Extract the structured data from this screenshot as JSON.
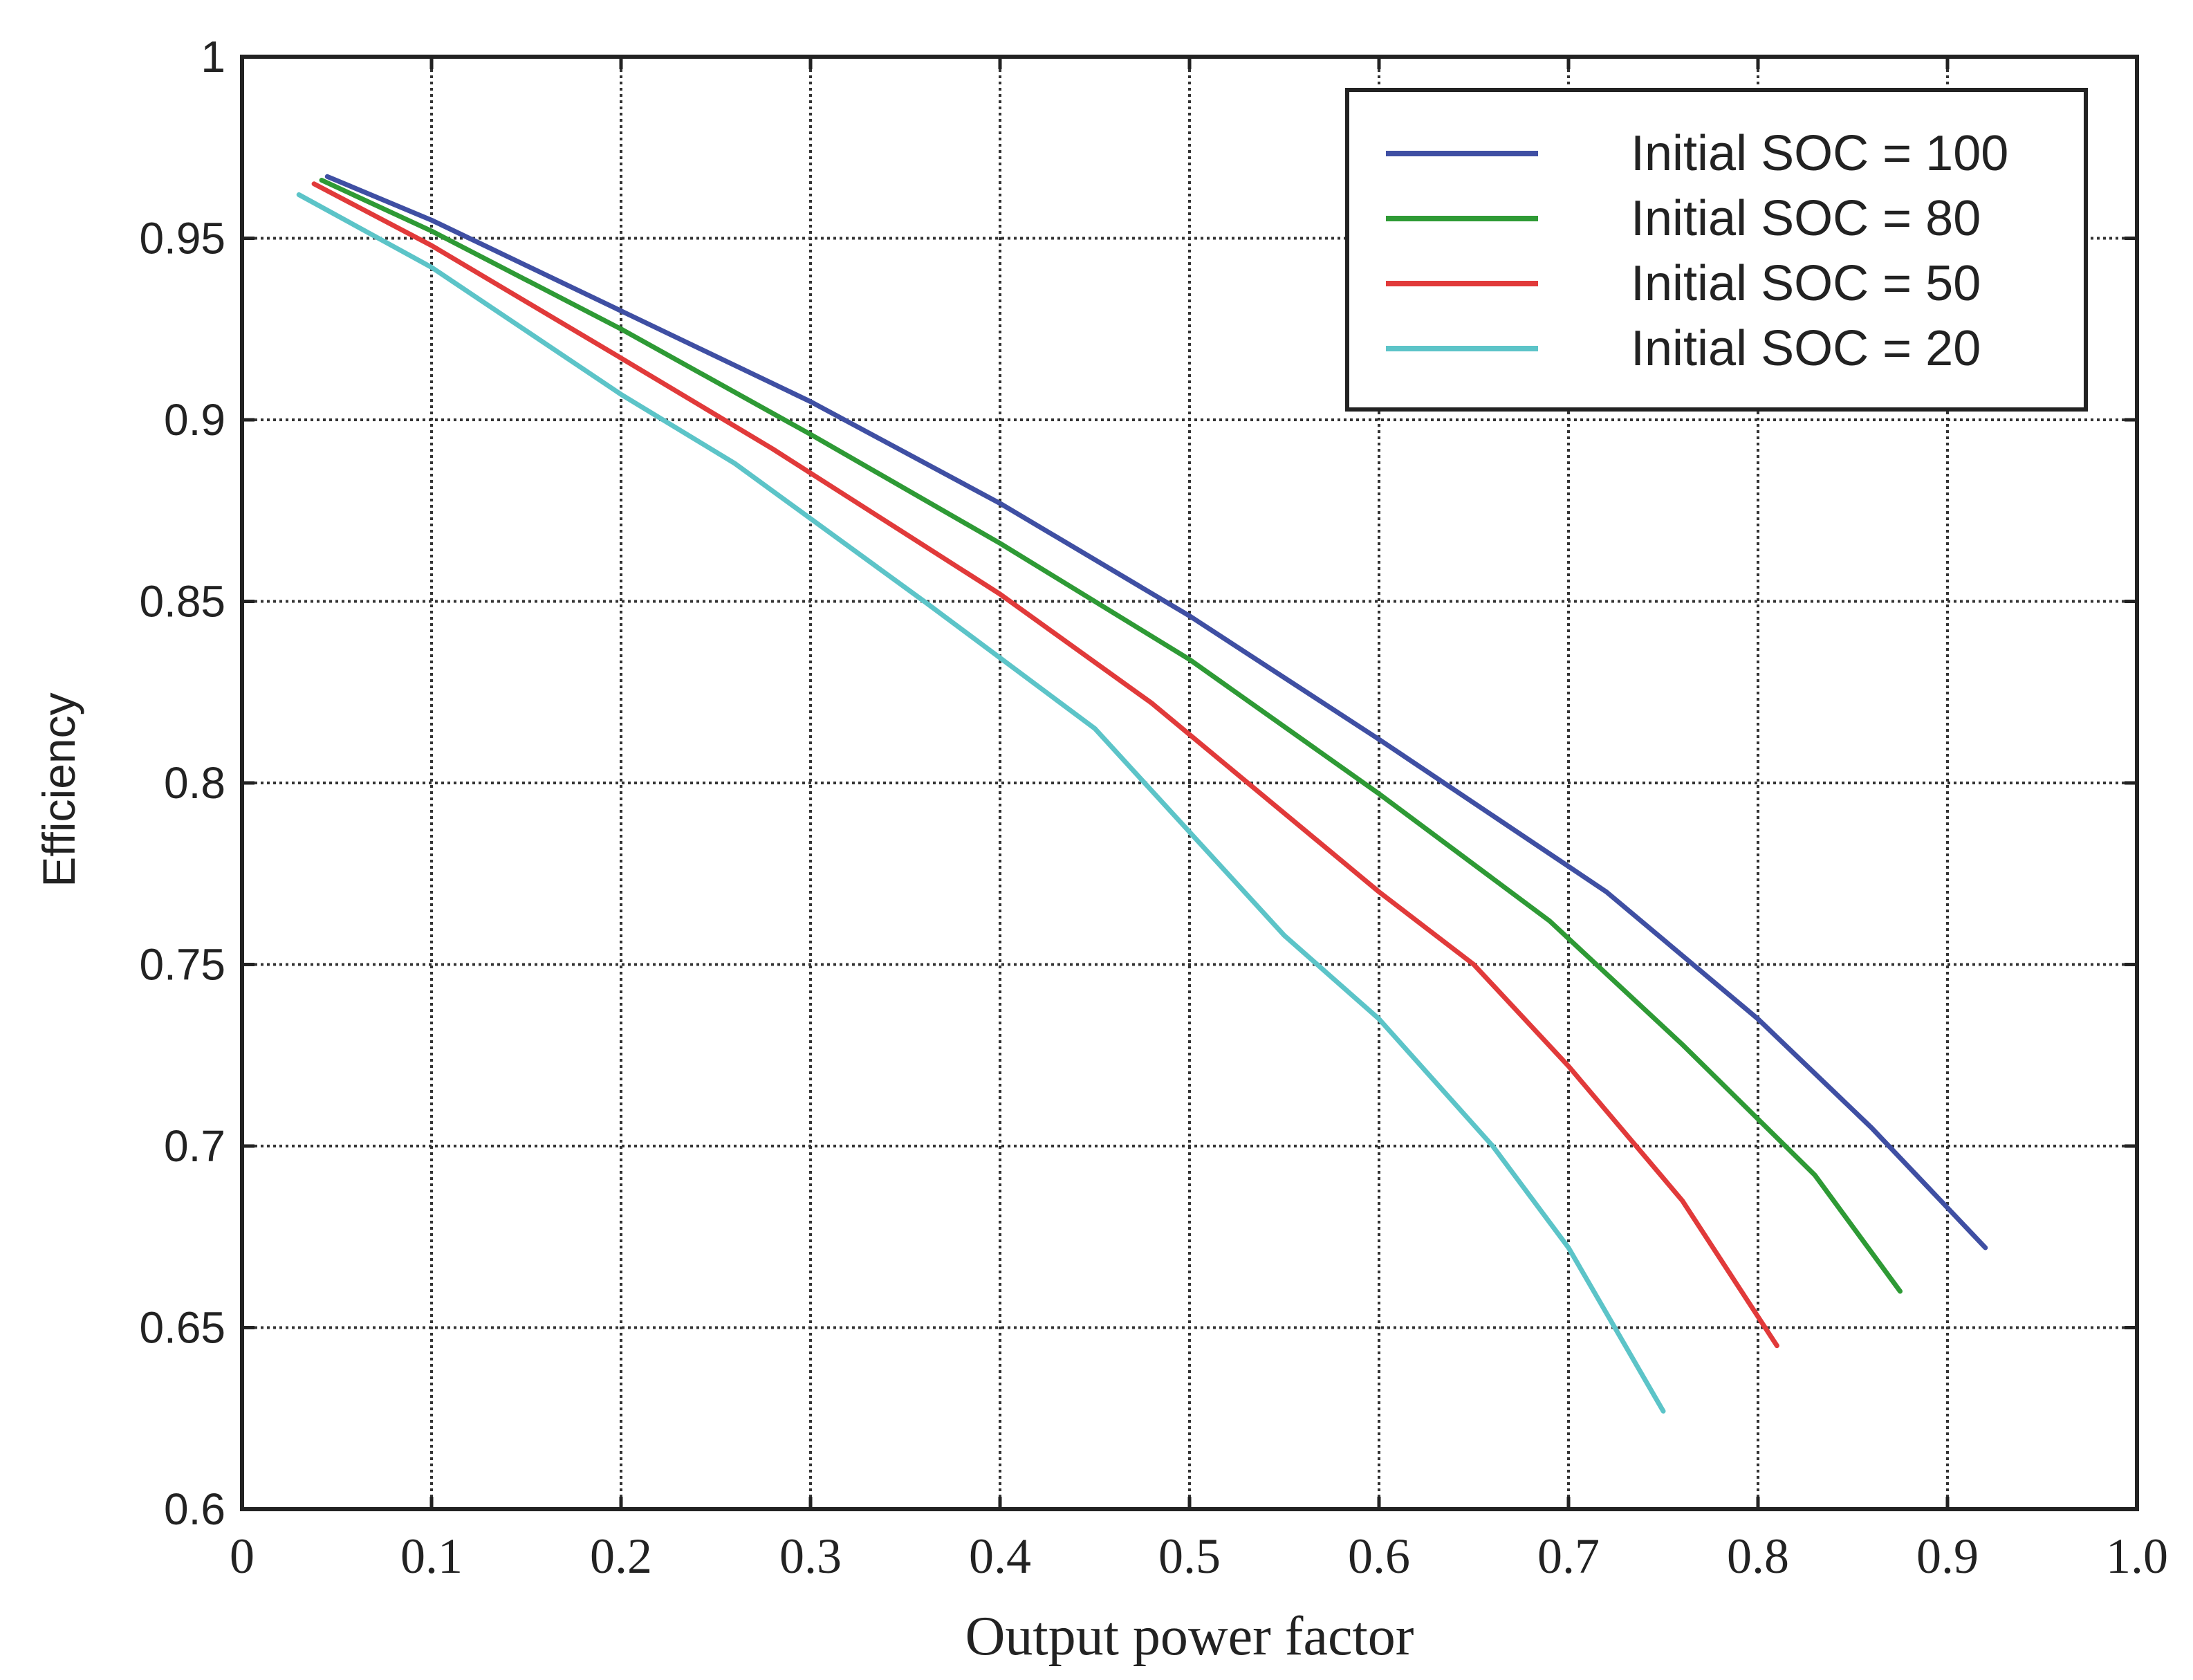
{
  "chart_data": {
    "type": "line",
    "title": "",
    "xlabel": "Output power factor",
    "ylabel": "Efficiency",
    "xlim": [
      0,
      1.0
    ],
    "ylim": [
      0.6,
      1
    ],
    "grid": true,
    "legend_position": "top-right",
    "x_tick_labels": [
      "0",
      "0.1",
      "0.2",
      "0.3",
      "0.4",
      "0.5",
      "0.6",
      "0.7",
      "0.8",
      "0.9",
      "1.0"
    ],
    "y_tick_labels": [
      "0.6",
      "0.65",
      "0.7",
      "0.75",
      "0.8",
      "0.85",
      "0.9",
      "0.95",
      "1"
    ],
    "series": [
      {
        "name": "Initial SOC = 100",
        "color": "#3f4fa3",
        "x": [
          0.045,
          0.1,
          0.2,
          0.3,
          0.4,
          0.5,
          0.6,
          0.7,
          0.72,
          0.8,
          0.86,
          0.92
        ],
        "y": [
          0.967,
          0.955,
          0.93,
          0.905,
          0.877,
          0.846,
          0.812,
          0.777,
          0.77,
          0.735,
          0.705,
          0.672
        ]
      },
      {
        "name": "Initial SOC = 80",
        "color": "#2e9a35",
        "x": [
          0.042,
          0.1,
          0.2,
          0.3,
          0.4,
          0.5,
          0.6,
          0.69,
          0.76,
          0.83,
          0.875
        ],
        "y": [
          0.966,
          0.952,
          0.925,
          0.896,
          0.866,
          0.834,
          0.797,
          0.762,
          0.728,
          0.692,
          0.66
        ]
      },
      {
        "name": "Initial SOC = 50",
        "color": "#e13a3a",
        "x": [
          0.038,
          0.1,
          0.2,
          0.28,
          0.4,
          0.48,
          0.6,
          0.65,
          0.7,
          0.76,
          0.81
        ],
        "y": [
          0.965,
          0.948,
          0.917,
          0.892,
          0.852,
          0.822,
          0.77,
          0.75,
          0.722,
          0.685,
          0.645
        ]
      },
      {
        "name": "Initial SOC = 20",
        "color": "#5cc4c8",
        "x": [
          0.03,
          0.1,
          0.2,
          0.26,
          0.36,
          0.45,
          0.55,
          0.6,
          0.66,
          0.7,
          0.75
        ],
        "y": [
          0.962,
          0.942,
          0.907,
          0.888,
          0.85,
          0.815,
          0.758,
          0.735,
          0.7,
          0.672,
          0.627
        ]
      }
    ]
  }
}
